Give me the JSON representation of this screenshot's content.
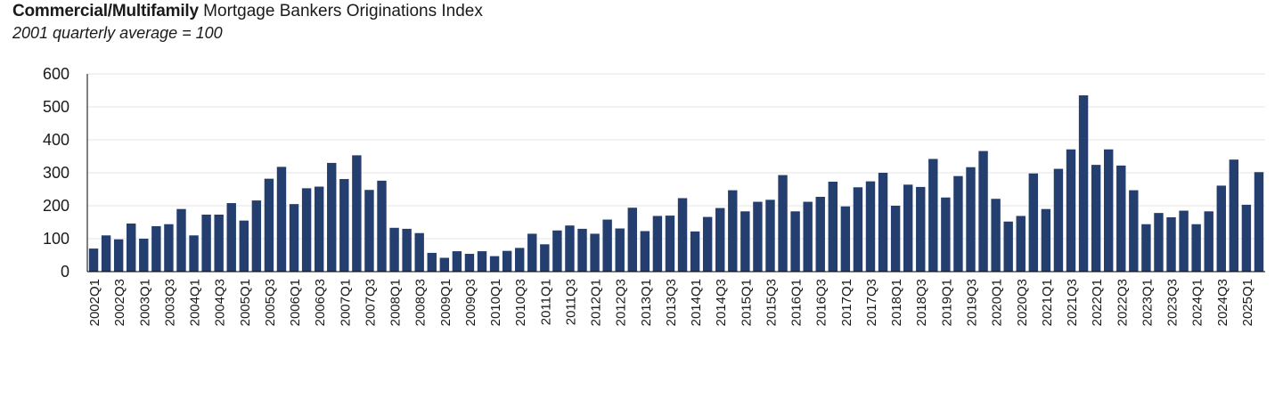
{
  "header": {
    "title_bold": "Commercial/Multifamily",
    "title_rest": "Mortgage Bankers Originations Index",
    "subtitle": "2001 quarterly average = 100"
  },
  "colors": {
    "bar": "#233E6F",
    "grid": "#e6e6e6",
    "axis": "#000000"
  },
  "chart_data": {
    "type": "bar",
    "title": "Commercial/Multifamily Mortgage Bankers Originations Index",
    "subtitle": "2001 quarterly average = 100",
    "xlabel": "",
    "ylabel": "",
    "ylim": [
      0,
      600
    ],
    "yticks": [
      0,
      100,
      200,
      300,
      400,
      500,
      600
    ],
    "grid": true,
    "legend": "none",
    "tick_labels": [
      "2002Q1",
      "2002Q3",
      "2003Q1",
      "2003Q3",
      "2004Q1",
      "2004Q3",
      "2005Q1",
      "2005Q3",
      "2006Q1",
      "2006Q3",
      "2007Q1",
      "2007Q3",
      "2008Q1",
      "2008Q3",
      "2009Q1",
      "2009Q3",
      "2010Q1",
      "2010Q3",
      "2011Q1",
      "2011Q3",
      "2012Q1",
      "2012Q3",
      "2013Q1",
      "2013Q3",
      "2014Q1",
      "2014Q3",
      "2015Q1",
      "2015Q3",
      "2016Q1",
      "2016Q3",
      "2017Q1",
      "2017Q3",
      "2018Q1",
      "2018Q3",
      "2019Q1",
      "2019Q3",
      "2020Q1",
      "2020Q3",
      "2021Q1",
      "2021Q3",
      "2022Q1",
      "2022Q3",
      "2023Q1",
      "2023Q3",
      "2024Q1",
      "2024Q3",
      "2025Q1"
    ],
    "categories": [
      "2002Q1",
      "2002Q2",
      "2002Q3",
      "2002Q4",
      "2003Q1",
      "2003Q2",
      "2003Q3",
      "2003Q4",
      "2004Q1",
      "2004Q2",
      "2004Q3",
      "2004Q4",
      "2005Q1",
      "2005Q2",
      "2005Q3",
      "2005Q4",
      "2006Q1",
      "2006Q2",
      "2006Q3",
      "2006Q4",
      "2007Q1",
      "2007Q2",
      "2007Q3",
      "2007Q4",
      "2008Q1",
      "2008Q2",
      "2008Q3",
      "2008Q4",
      "2009Q1",
      "2009Q2",
      "2009Q3",
      "2009Q4",
      "2010Q1",
      "2010Q2",
      "2010Q3",
      "2010Q4",
      "2011Q1",
      "2011Q2",
      "2011Q3",
      "2011Q4",
      "2012Q1",
      "2012Q2",
      "2012Q3",
      "2012Q4",
      "2013Q1",
      "2013Q2",
      "2013Q3",
      "2013Q4",
      "2014Q1",
      "2014Q2",
      "2014Q3",
      "2014Q4",
      "2015Q1",
      "2015Q2",
      "2015Q3",
      "2015Q4",
      "2016Q1",
      "2016Q2",
      "2016Q3",
      "2016Q4",
      "2017Q1",
      "2017Q2",
      "2017Q3",
      "2017Q4",
      "2018Q1",
      "2018Q2",
      "2018Q3",
      "2018Q4",
      "2019Q1",
      "2019Q2",
      "2019Q3",
      "2019Q4",
      "2020Q1",
      "2020Q2",
      "2020Q3",
      "2020Q4",
      "2021Q1",
      "2021Q2",
      "2021Q3",
      "2021Q4",
      "2022Q1",
      "2022Q2",
      "2022Q3",
      "2022Q4",
      "2023Q1",
      "2023Q2",
      "2023Q3",
      "2023Q4",
      "2024Q1",
      "2024Q2",
      "2024Q3",
      "2024Q4",
      "2025Q1",
      "2025Q2"
    ],
    "values": [
      70,
      110,
      98,
      146,
      100,
      138,
      144,
      190,
      110,
      173,
      173,
      208,
      155,
      216,
      282,
      318,
      205,
      253,
      258,
      330,
      281,
      353,
      248,
      276,
      133,
      130,
      117,
      57,
      42,
      62,
      54,
      62,
      47,
      63,
      72,
      115,
      83,
      125,
      140,
      130,
      115,
      158,
      131,
      194,
      123,
      169,
      170,
      223,
      122,
      166,
      193,
      247,
      183,
      212,
      218,
      293,
      183,
      212,
      227,
      273,
      198,
      256,
      274,
      300,
      200,
      264,
      257,
      342,
      225,
      290,
      317,
      366,
      221,
      152,
      169,
      298,
      190,
      312,
      371,
      535,
      324,
      371,
      322,
      247,
      144,
      178,
      165,
      185,
      144,
      183,
      261,
      340,
      203,
      302
    ]
  }
}
